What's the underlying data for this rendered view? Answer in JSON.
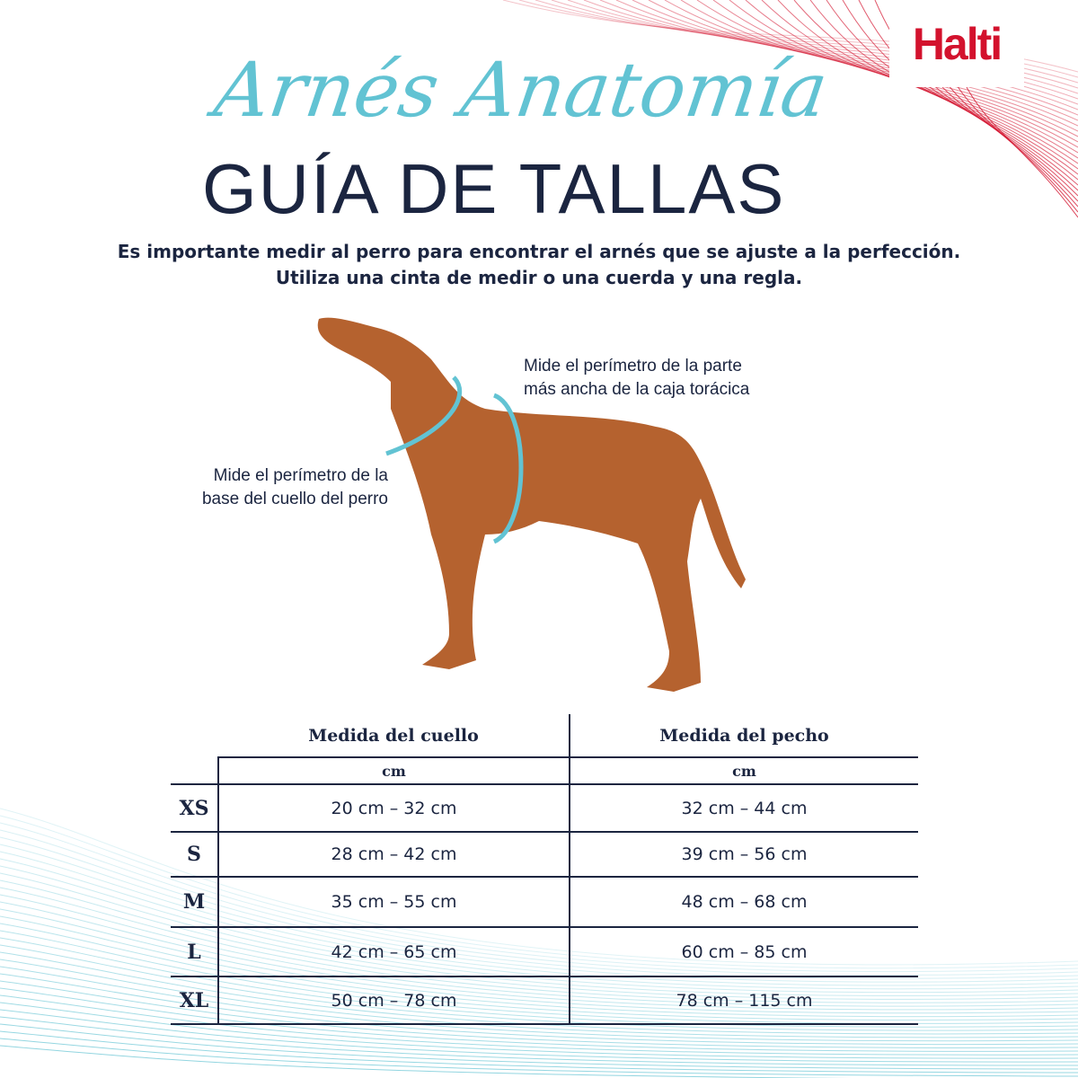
{
  "brand": {
    "logo_text": "Halti",
    "color": "#d3122d"
  },
  "title": {
    "script": "Arnés Anatomía",
    "main": "GUÍA DE TALLAS",
    "script_color": "#62c3d3"
  },
  "intro": {
    "line1": "Es importante medir al perro para encontrar el arnés que se ajuste a la perfección.",
    "line2": "Utiliza una cinta de medir o una cuerda y una regla."
  },
  "notes": {
    "chest": [
      "Mide el perímetro de la parte",
      "más ancha de la caja torácica"
    ],
    "neck": [
      "Mide el perímetro de la",
      "base del cuello del perro"
    ]
  },
  "table": {
    "headers": [
      "Medida del cuello",
      "Medida del pecho"
    ],
    "units": [
      "cm",
      "cm"
    ],
    "rows": [
      {
        "size": "XS",
        "neck": "20 cm – 32 cm",
        "chest": "32 cm – 44 cm"
      },
      {
        "size": "S",
        "neck": "28 cm – 42 cm",
        "chest": "39 cm – 56 cm"
      },
      {
        "size": "M",
        "neck": "35 cm – 55 cm",
        "chest": "48 cm – 68 cm"
      },
      {
        "size": "L",
        "neck": "42 cm – 65 cm",
        "chest": "60 cm – 85 cm"
      },
      {
        "size": "XL",
        "neck": "50 cm – 78 cm",
        "chest": "78 cm – 115 cm"
      }
    ]
  }
}
